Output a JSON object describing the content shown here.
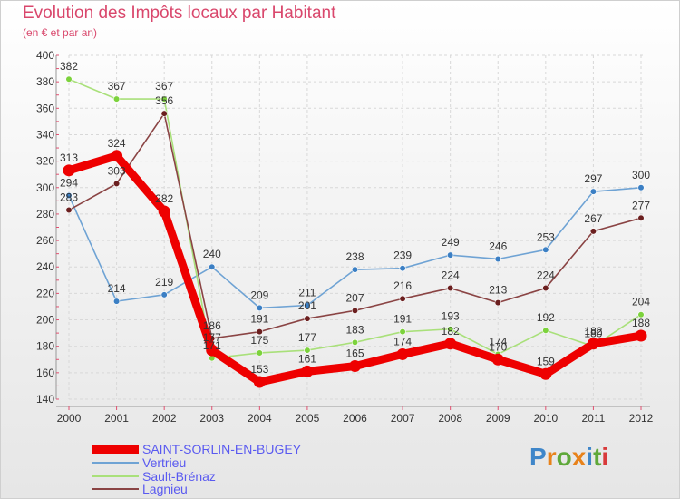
{
  "header": {
    "title": "Evolution des Impôts locaux par Habitant",
    "subtitle": "(en € et par an)"
  },
  "brand": {
    "name": "Proxiti"
  },
  "chart_data": {
    "type": "line",
    "title": "Evolution des Impôts locaux par Habitant",
    "subtitle": "(en € et par an)",
    "xlabel": "",
    "ylabel": "",
    "categories": [
      "2000",
      "2001",
      "2002",
      "2003",
      "2004",
      "2005",
      "2006",
      "2007",
      "2008",
      "2009",
      "2010",
      "2011",
      "2012"
    ],
    "yticks": [
      140,
      160,
      180,
      200,
      220,
      240,
      260,
      280,
      300,
      320,
      340,
      360,
      380,
      400
    ],
    "ylim": [
      140,
      400
    ],
    "grid": true,
    "legend_position": "bottom-left",
    "series": [
      {
        "name": "SAINT-SORLIN-EN-BUGEY",
        "color": "#ee0000",
        "dot_color": "#ee0000",
        "values": [
          313,
          324,
          282,
          177,
          153,
          161,
          165,
          174,
          182,
          170,
          159,
          182,
          188
        ]
      },
      {
        "name": "Vertrieu",
        "color": "#6fa3d4",
        "dot_color": "#3b7fc4",
        "values": [
          294,
          214,
          219,
          240,
          209,
          211,
          238,
          239,
          249,
          246,
          253,
          297,
          300
        ]
      },
      {
        "name": "Sault-Brénaz",
        "color": "#a9e07a",
        "dot_color": "#7cd23c",
        "values": [
          382,
          367,
          367,
          171,
          175,
          177,
          183,
          191,
          193,
          174,
          192,
          180,
          204
        ]
      },
      {
        "name": "Lagnieu",
        "color": "#8a4444",
        "dot_color": "#6b1f1f",
        "values": [
          283,
          303,
          356,
          186,
          191,
          201,
          207,
          216,
          224,
          213,
          224,
          267,
          277
        ]
      }
    ]
  }
}
